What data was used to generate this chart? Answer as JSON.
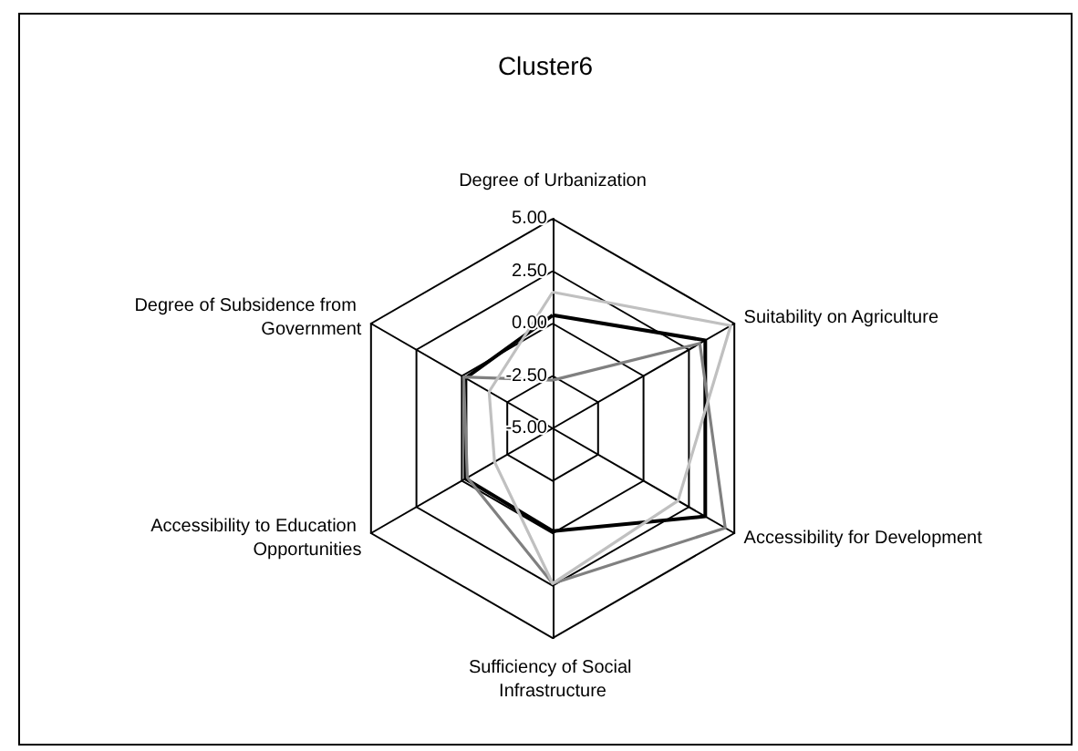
{
  "chart_data": {
    "type": "radar",
    "title": "Cluster6",
    "categories": [
      "Degree of Urbanization",
      "Suitability on Agriculture",
      "Accessibility for Development",
      "Sufficiency of Social Infrastructure",
      "Accessibility to Education Opportunities",
      "Degree of Subsidence from Government"
    ],
    "ylim": [
      -5,
      5
    ],
    "yticks": [
      {
        "value": -5,
        "label": "-5.00"
      },
      {
        "value": -2.5,
        "label": "-2.50"
      },
      {
        "value": 0,
        "label": "0.00"
      },
      {
        "value": 2.5,
        "label": "2.50"
      },
      {
        "value": 5,
        "label": "5.00"
      }
    ],
    "series": [
      {
        "color": "#000000",
        "values": [
          0.4,
          3.4,
          3.4,
          -0.1,
          -0.2,
          -0.2
        ]
      },
      {
        "color": "#808080",
        "values": [
          -2.7,
          3.1,
          4.5,
          2.4,
          -0.3,
          -0.1
        ]
      },
      {
        "color": "#c0c0c0",
        "values": [
          1.5,
          4.8,
          1.9,
          2.4,
          -1.8,
          -1.5
        ]
      }
    ],
    "marker": "none",
    "line_style": "solid"
  }
}
